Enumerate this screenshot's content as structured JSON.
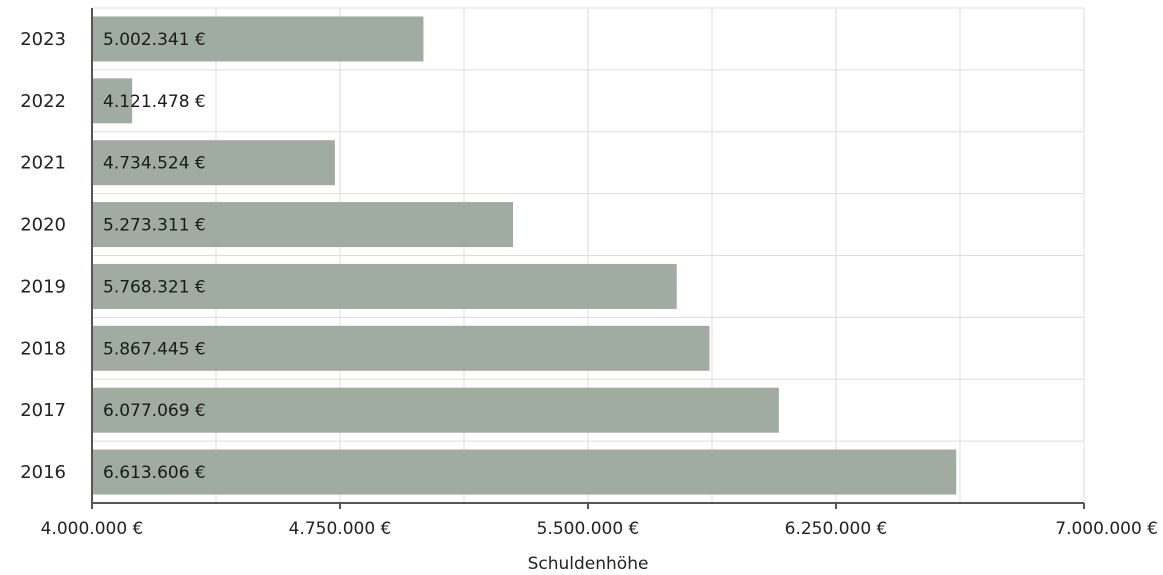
{
  "chart_data": {
    "type": "bar",
    "orientation": "horizontal",
    "categories": [
      "2023",
      "2022",
      "2021",
      "2020",
      "2019",
      "2018",
      "2017",
      "2016"
    ],
    "values": [
      5002341,
      4121478,
      4734524,
      5273311,
      5768321,
      5867445,
      6077069,
      6613606
    ],
    "data_labels": [
      "5.002.341 €",
      "4.121.478 €",
      "4.734.524 €",
      "5.273.311 €",
      "5.768.321 €",
      "5.867.445 €",
      "6.077.069 €",
      "6.613.606 €"
    ],
    "xlim": [
      4000000,
      7000000
    ],
    "x_ticks": [
      4000000,
      4750000,
      5500000,
      6250000,
      7000000
    ],
    "x_tick_labels": [
      "4.000.000 €",
      "4.750.000 €",
      "5.500.000 €",
      "6.250.000 €",
      "7.000.000 €"
    ],
    "xlabel": "Schuldenhöhe",
    "ylabel": "",
    "title": "",
    "grid": true,
    "bar_color": "#a0aba2",
    "grid_color": "#dddddd",
    "axis_color": "#555555"
  }
}
